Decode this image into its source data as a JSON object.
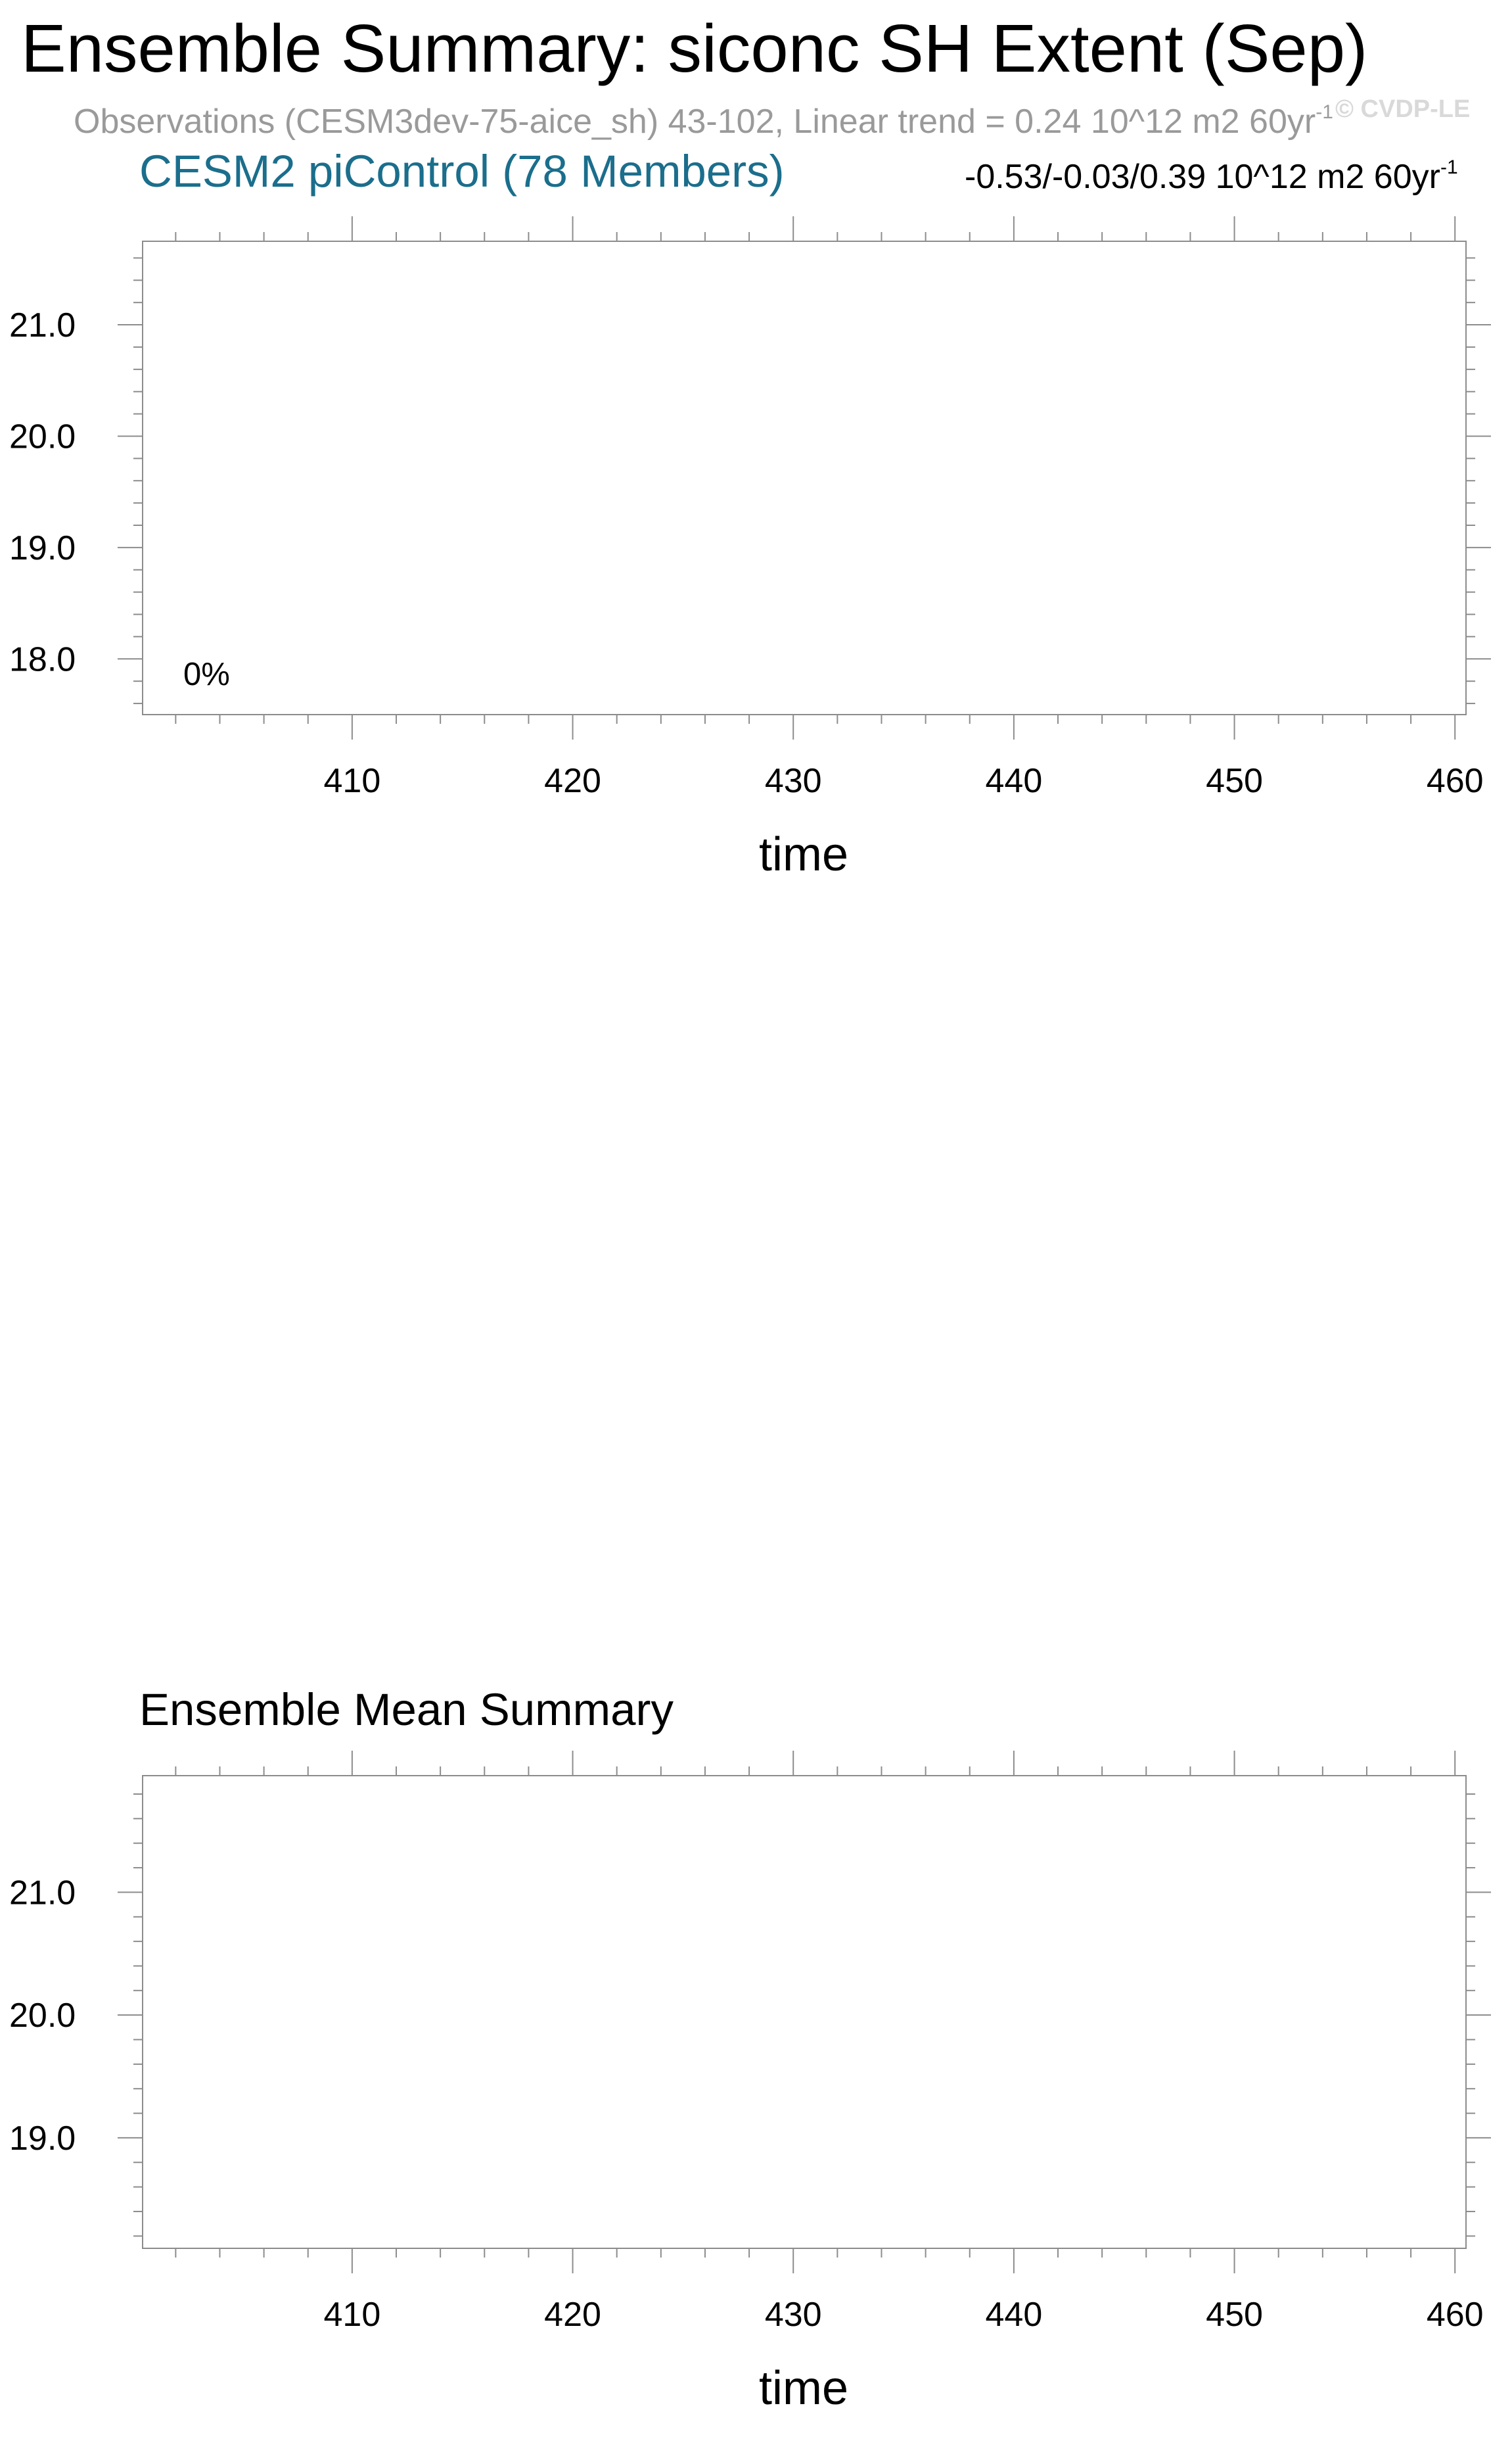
{
  "header": {
    "title": "Ensemble Summary: siconc SH Extent (Sep)",
    "observations_text": "Observations (CESM3dev-75-aice_sh) 43-102, Linear trend = 0.24 10^12 m2 60yr",
    "observations_superscript": "-1",
    "watermark": "© CVDP-LE"
  },
  "chart_data": [
    {
      "type": "line",
      "title": "CESM2 piControl (78 Members)",
      "annotation_right": "-0.53/-0.03/0.39 10^12 m2 60yr",
      "annotation_right_superscript": "-1",
      "inset_label": "0%",
      "xlabel": "time",
      "ylabel": "",
      "xlim": [
        400.5,
        460.5
      ],
      "ylim": [
        17.5,
        21.75
      ],
      "x_ticks": [
        "410",
        "420",
        "430",
        "440",
        "450",
        "460"
      ],
      "y_ticks": [
        "18.0",
        "19.0",
        "20.0",
        "21.0"
      ],
      "series": []
    },
    {
      "type": "line",
      "title": "Ensemble Mean Summary",
      "xlabel": "time",
      "ylabel": "",
      "xlim": [
        400.5,
        460.5
      ],
      "ylim": [
        18.1,
        21.95
      ],
      "x_ticks": [
        "410",
        "420",
        "430",
        "440",
        "450",
        "460"
      ],
      "y_ticks": [
        "19.0",
        "20.0",
        "21.0"
      ],
      "series": []
    }
  ]
}
